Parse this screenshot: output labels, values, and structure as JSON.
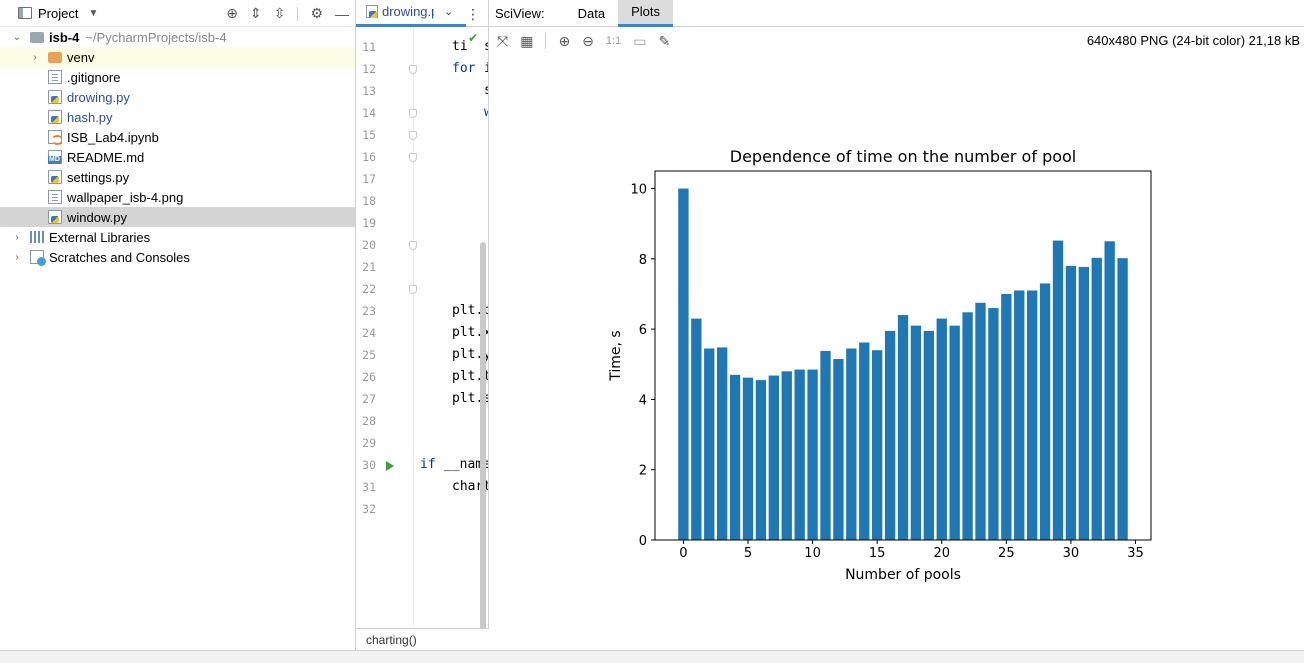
{
  "project_panel": {
    "title": "Project",
    "root": {
      "name": "isb-4",
      "path": "~/PycharmProjects/isb-4"
    },
    "items": [
      {
        "label": "venv"
      },
      {
        "label": ".gitignore"
      },
      {
        "label": "drowing.py"
      },
      {
        "label": "hash.py"
      },
      {
        "label": "ISB_Lab4.ipynb"
      },
      {
        "label": "README.md"
      },
      {
        "label": "settings.py"
      },
      {
        "label": "wallpaper_isb-4.png"
      },
      {
        "label": "window.py"
      }
    ],
    "external_libraries": "External Libraries",
    "scratches": "Scratches and Consoles"
  },
  "editor": {
    "tab_label": "drowing.p",
    "line_numbers": [
      "11",
      "12",
      "13",
      "14",
      "15",
      "16",
      "17",
      "18",
      "19",
      "20",
      "21",
      "22",
      "23",
      "24",
      "25",
      "26",
      "27",
      "28",
      "29",
      "30",
      "31",
      "32"
    ],
    "code_lines": {
      "l11": "ti",
      "l11b": "s",
      "l12_kw": "for",
      "l12b": "i",
      "l13": "s",
      "l14": "w",
      "l23": "plt.b",
      "l24": "plt.x",
      "l25": "plt.y",
      "l26": "plt.t",
      "l27": "plt.s",
      "l30_kw": "if",
      "l30": "__name",
      "l31": "chart"
    },
    "breadcrumb": "charting()"
  },
  "sciview": {
    "label": "SciView:",
    "tabs": [
      "Data",
      "Plots"
    ],
    "active_tab": "Plots",
    "image_info": "640x480 PNG (24-bit color) 21,18 kB",
    "zoom_label": "1:1"
  },
  "chart_data": {
    "type": "bar",
    "title": "Dependence of time on the number of pool",
    "xlabel": "Number of pools",
    "ylabel": "Time, s",
    "x": [
      0,
      1,
      2,
      3,
      4,
      5,
      6,
      7,
      8,
      9,
      10,
      11,
      12,
      13,
      14,
      15,
      16,
      17,
      18,
      19,
      20,
      21,
      22,
      23,
      24,
      25,
      26,
      27,
      28,
      29,
      30,
      31,
      32,
      33,
      34
    ],
    "values": [
      10.0,
      6.3,
      5.45,
      5.48,
      4.7,
      4.62,
      4.55,
      4.68,
      4.8,
      4.85,
      4.85,
      5.38,
      5.15,
      5.45,
      5.62,
      5.4,
      5.95,
      6.4,
      6.1,
      5.95,
      6.3,
      6.1,
      6.48,
      6.75,
      6.6,
      7.0,
      7.1,
      7.1,
      7.3,
      8.52,
      7.8,
      7.77,
      8.03,
      8.5,
      8.02
    ],
    "xticks": [
      "0",
      "5",
      "10",
      "15",
      "20",
      "25",
      "30",
      "35"
    ],
    "yticks": [
      "0",
      "2",
      "4",
      "6",
      "8",
      "10"
    ],
    "xlim": [
      -2.2,
      36.2
    ],
    "ylim": [
      0,
      10.5
    ],
    "bar_color": "#1f77b4"
  }
}
